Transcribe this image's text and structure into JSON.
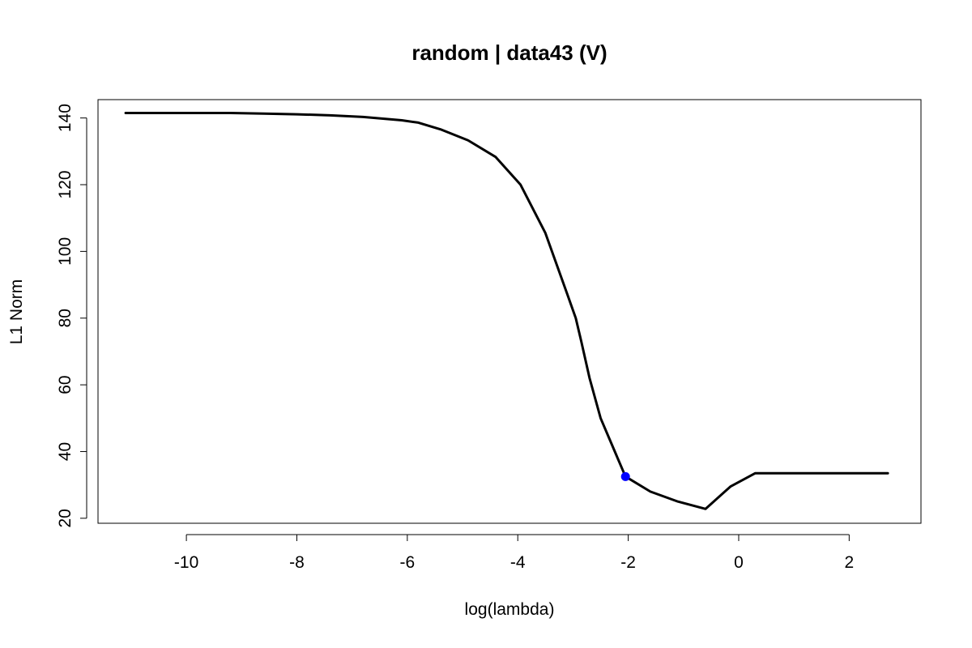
{
  "chart_data": {
    "type": "line",
    "title": "random | data43 (V)",
    "xlabel": "log(lambda)",
    "ylabel": "L1 Norm",
    "xlim": [
      -11.6,
      3.3
    ],
    "ylim": [
      18.5,
      145.5
    ],
    "x_ticks": [
      -10,
      -8,
      -6,
      -4,
      -2,
      0,
      2
    ],
    "x_tick_labels": [
      "-10",
      "-8",
      "-6",
      "-4",
      "-2",
      "0",
      "2"
    ],
    "y_ticks": [
      20,
      40,
      60,
      80,
      100,
      120,
      140
    ],
    "y_tick_labels": [
      "20",
      "40",
      "60",
      "80",
      "100",
      "120",
      "140"
    ],
    "grid": false,
    "series": [
      {
        "color": "#000000",
        "x": [
          -11.1,
          -10.5,
          -9.9,
          -9.2,
          -8.6,
          -8.0,
          -7.4,
          -6.8,
          -6.1,
          -5.8,
          -5.4,
          -4.9,
          -4.4,
          -3.95,
          -3.5,
          -3.1,
          -2.95,
          -2.85,
          -2.7,
          -2.5,
          -2.05,
          -1.6,
          -1.1,
          -0.6,
          -0.15,
          0.3,
          0.8,
          1.3,
          1.9,
          2.7
        ],
        "values": [
          141.5,
          141.5,
          141.5,
          141.5,
          141.3,
          141.1,
          140.8,
          140.3,
          139.3,
          138.6,
          136.6,
          133.3,
          128.3,
          120.0,
          105.5,
          87.0,
          80.0,
          73.0,
          62.0,
          50.0,
          32.5,
          28.0,
          25.0,
          22.8,
          29.5,
          33.5,
          33.5,
          33.5,
          33.5,
          33.5
        ]
      }
    ],
    "highlight_point": {
      "x": -2.05,
      "y": 32.5,
      "color": "#0000FF"
    }
  }
}
